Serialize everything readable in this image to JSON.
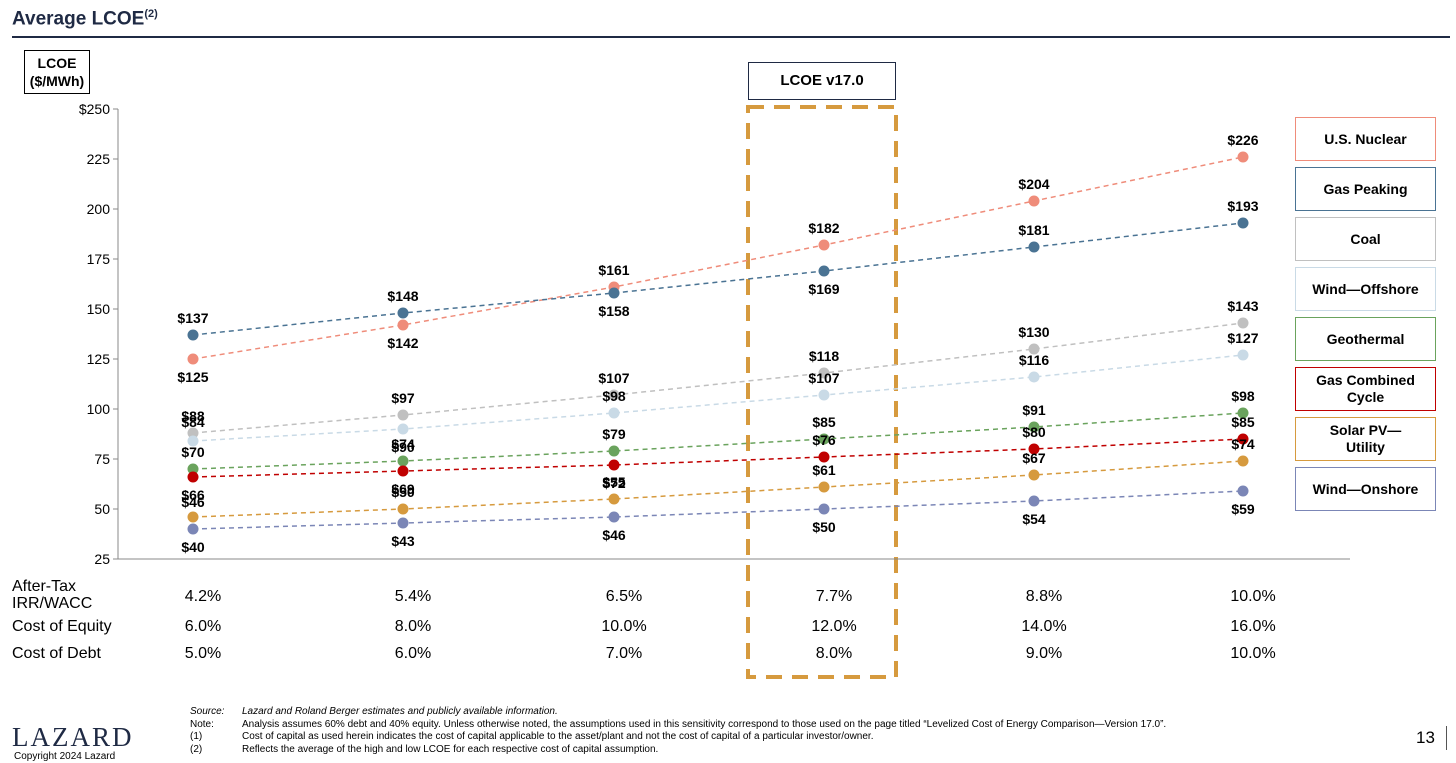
{
  "page": {
    "title": "Average LCOE",
    "title_sup": "(2)",
    "y_unit_label_line1": "LCOE",
    "y_unit_label_line2": "($/MWh)",
    "highlight_label": "LCOE v17.0",
    "page_number": "13",
    "logo": "LAZARD",
    "copyright": "Copyright 2024 Lazard"
  },
  "chart_data": {
    "type": "line",
    "title": "Average LCOE",
    "ylabel": "LCOE ($/MWh)",
    "ylim": [
      25,
      250
    ],
    "yticks": [
      "$250",
      "225",
      "200",
      "175",
      "150",
      "125",
      "100",
      "75",
      "50",
      "25"
    ],
    "ytick_values": [
      250,
      225,
      200,
      175,
      150,
      125,
      100,
      75,
      50,
      25
    ],
    "categories": [
      "4.2%",
      "5.4%",
      "6.5%",
      "7.7%",
      "8.8%",
      "10.0%"
    ],
    "highlighted_category_index": 3,
    "line_style": "dashed",
    "legend_placement": "right",
    "series": [
      {
        "name": "U.S. Nuclear",
        "color": "#ef8c7a",
        "values": [
          125,
          142,
          161,
          182,
          204,
          226
        ],
        "labels": [
          "$125",
          "$142",
          "$161",
          "$182",
          "$204",
          "$226"
        ]
      },
      {
        "name": "Gas Peaking",
        "color": "#4a7393",
        "values": [
          137,
          148,
          158,
          169,
          181,
          193
        ],
        "labels": [
          "$137",
          "$148",
          "$158",
          "$169",
          "$181",
          "$193"
        ]
      },
      {
        "name": "Coal",
        "color": "#c0c0c0",
        "values": [
          88,
          97,
          107,
          118,
          130,
          143
        ],
        "labels": [
          "$88",
          "$97",
          "$107",
          "$118",
          "$130",
          "$143"
        ]
      },
      {
        "name": "Wind—Offshore",
        "color": "#c9dae6",
        "values": [
          84,
          90,
          98,
          107,
          116,
          127
        ],
        "labels": [
          "$84",
          "$90",
          "$98",
          "$107",
          "$116",
          "$127"
        ]
      },
      {
        "name": "Geothermal",
        "color": "#6aa35d",
        "values": [
          70,
          74,
          79,
          85,
          91,
          98
        ],
        "labels": [
          "$70",
          "$74",
          "$79",
          "$85",
          "$91",
          "$98"
        ]
      },
      {
        "name": "Gas Combined Cycle",
        "color": "#c00000",
        "values": [
          66,
          69,
          72,
          76,
          80,
          85
        ],
        "labels": [
          "$66",
          "$69",
          "$72",
          "$76",
          "$80",
          "$85"
        ]
      },
      {
        "name": "Solar PV—Utility",
        "color": "#d69a3e",
        "values": [
          46,
          50,
          55,
          61,
          67,
          74
        ],
        "labels": [
          "$46",
          "$50",
          "$55",
          "$61",
          "$67",
          "$74"
        ]
      },
      {
        "name": "Wind—Onshore",
        "color": "#7b86b6",
        "values": [
          40,
          43,
          46,
          50,
          54,
          59
        ],
        "labels": [
          "$40",
          "$43",
          "$46",
          "$50",
          "$54",
          "$59"
        ]
      }
    ],
    "legend": [
      {
        "label_lines": [
          "U.S. Nuclear"
        ],
        "color": "#ef8c7a"
      },
      {
        "label_lines": [
          "Gas Peaking"
        ],
        "color": "#4a7393"
      },
      {
        "label_lines": [
          "Coal"
        ],
        "color": "#c0c0c0"
      },
      {
        "label_lines": [
          "Wind—Offshore"
        ],
        "color": "#c9dae6"
      },
      {
        "label_lines": [
          "Geothermal"
        ],
        "color": "#6aa35d"
      },
      {
        "label_lines": [
          "Gas Combined",
          "Cycle"
        ],
        "color": "#c00000"
      },
      {
        "label_lines": [
          "Solar PV—",
          "Utility"
        ],
        "color": "#d69a3e"
      },
      {
        "label_lines": [
          "Wind—Onshore"
        ],
        "color": "#7b86b6"
      }
    ]
  },
  "table": {
    "rows": [
      {
        "label_line1": "After-Tax",
        "label_line2": "IRR/WACC",
        "values": [
          "4.2%",
          "5.4%",
          "6.5%",
          "7.7%",
          "8.8%",
          "10.0%"
        ]
      },
      {
        "label_line1": "Cost of Equity",
        "label_line2": "",
        "values": [
          "6.0%",
          "8.0%",
          "10.0%",
          "12.0%",
          "14.0%",
          "16.0%"
        ]
      },
      {
        "label_line1": "Cost of Debt",
        "label_line2": "",
        "values": [
          "5.0%",
          "6.0%",
          "7.0%",
          "8.0%",
          "9.0%",
          "10.0%"
        ]
      }
    ]
  },
  "footnotes": [
    {
      "key": "Source:",
      "text": "Lazard and Roland Berger estimates and publicly available information.",
      "italic": true
    },
    {
      "key": "Note:",
      "text": "Analysis assumes 60% debt and 40% equity. Unless otherwise noted, the assumptions used in this sensitivity correspond to those used on the page titled “Levelized Cost of Energy Comparison—Version 17.0”.",
      "italic": false
    },
    {
      "key": "(1)",
      "text": "Cost of capital as used herein indicates the cost of capital applicable to the asset/plant and not the cost of capital of a particular investor/owner.",
      "italic": false
    },
    {
      "key": "(2)",
      "text": "Reflects the average of the high and low LCOE for each respective cost of capital assumption.",
      "italic": false
    }
  ]
}
